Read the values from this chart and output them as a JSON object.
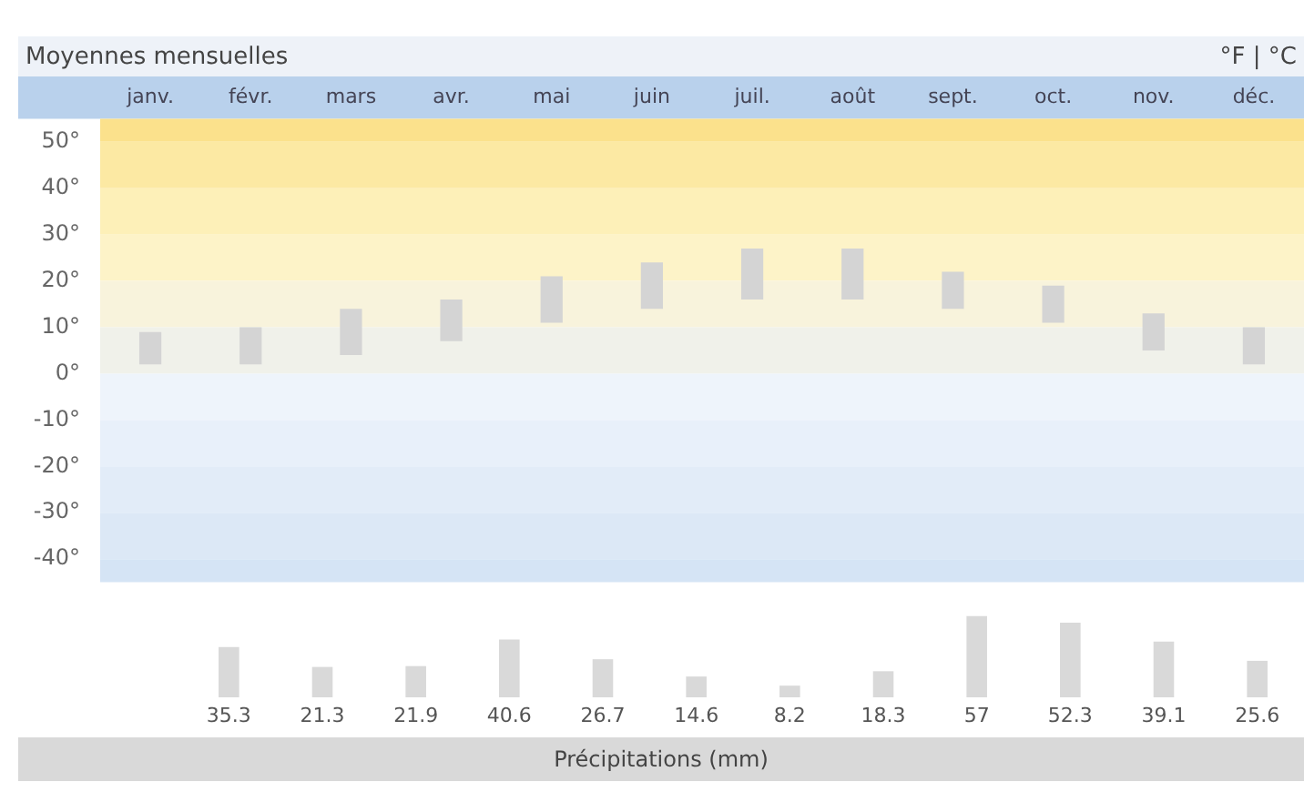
{
  "chart_data": [
    {
      "type": "bar",
      "title": "Moyennes mensuelles",
      "annotations": [
        "°F | °C"
      ],
      "categories": [
        "janv.",
        "févr.",
        "mars",
        "avr.",
        "mai",
        "juin",
        "juil.",
        "août",
        "sept.",
        "oct.",
        "nov.",
        "déc."
      ],
      "base": [
        2,
        2,
        4,
        7,
        11,
        14,
        16,
        16,
        14,
        11,
        5,
        2
      ],
      "values": [
        7,
        8,
        10,
        9,
        10,
        10,
        11,
        11,
        8,
        8,
        8,
        8
      ],
      "color": "#d4d4d4",
      "ylim": [
        -45,
        55
      ],
      "yticks": [
        {
          "value": 50,
          "label": "50°"
        },
        {
          "value": 40,
          "label": "40°"
        },
        {
          "value": 30,
          "label": "30°"
        },
        {
          "value": 20,
          "label": "20°"
        },
        {
          "value": 10,
          "label": "10°"
        },
        {
          "value": 0,
          "label": "0°"
        },
        {
          "value": -10,
          "label": "-10°"
        },
        {
          "value": -20,
          "label": "-20°"
        },
        {
          "value": -30,
          "label": "-30°"
        },
        {
          "value": -40,
          "label": "-40°"
        }
      ],
      "bands": [
        {
          "axis": "y",
          "from": 50,
          "to": 55,
          "color": "#fbe18c"
        },
        {
          "axis": "y",
          "from": 40,
          "to": 50,
          "color": "#fce9a3"
        },
        {
          "axis": "y",
          "from": 30,
          "to": 40,
          "color": "#fdf0b8"
        },
        {
          "axis": "y",
          "from": 20,
          "to": 30,
          "color": "#fdf3c8"
        },
        {
          "axis": "y",
          "from": 10,
          "to": 20,
          "color": "#f8f3dc"
        },
        {
          "axis": "y",
          "from": 0,
          "to": 10,
          "color": "#f0f1ea"
        },
        {
          "axis": "y",
          "from": -10,
          "to": 0,
          "color": "#eef4fb"
        },
        {
          "axis": "y",
          "from": -20,
          "to": -10,
          "color": "#e8f0fa"
        },
        {
          "axis": "y",
          "from": -30,
          "to": -20,
          "color": "#e2ecf8"
        },
        {
          "axis": "y",
          "from": -40,
          "to": -30,
          "color": "#dce8f6"
        },
        {
          "axis": "y",
          "from": -45,
          "to": -40,
          "color": "#d5e4f5"
        }
      ],
      "grid": false,
      "legend": false
    },
    {
      "type": "bar",
      "xlabel": "Précipitations (mm)",
      "categories": [
        null,
        null,
        null,
        null,
        null,
        null,
        null,
        null,
        null,
        null,
        null,
        null
      ],
      "values": [
        35.3,
        21.3,
        21.9,
        40.6,
        26.7,
        14.6,
        8.2,
        18.3,
        57,
        52.3,
        39.1,
        25.6
      ],
      "color": "#d9d9d9",
      "data_labels": true,
      "tick_labels": false,
      "grid": false,
      "legend": false
    }
  ]
}
